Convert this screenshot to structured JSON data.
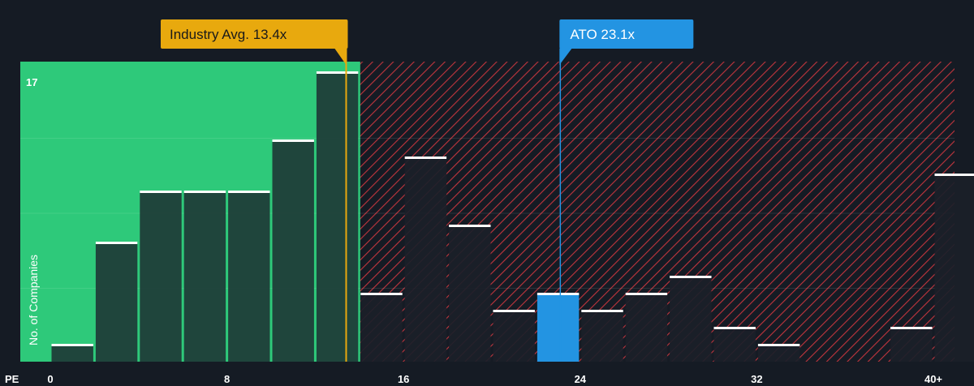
{
  "chart_data": {
    "type": "bar",
    "xlabel": "PE",
    "ylabel": "No. of Companies",
    "x_ticks": [
      "0",
      "8",
      "16",
      "24",
      "32",
      "40+"
    ],
    "y_max_label": "17",
    "ylim": [
      0,
      17
    ],
    "bin_width": 2,
    "bins_left": [
      0,
      2,
      4,
      6,
      8,
      10,
      12,
      14,
      16,
      18,
      20,
      22,
      24,
      26,
      28,
      30,
      32,
      34,
      36,
      38,
      40
    ],
    "values": [
      1,
      7,
      10,
      10,
      10,
      13,
      17,
      4,
      12,
      8,
      3,
      4,
      3,
      4,
      5,
      2,
      1,
      0,
      0,
      2,
      11
    ],
    "highlight_index": 11,
    "industry_avg": {
      "label": "Industry Avg. 13.4x",
      "value": 13.4
    },
    "company": {
      "label": "ATO 23.1x",
      "value": 23.1
    },
    "colors": {
      "background": "#151b24",
      "under_avg_zone": "#2ec97a",
      "over_avg_hatch": "#c0353d",
      "bar_fill": "#1e3a36",
      "bar_fill_over": "#1b1f29",
      "bar_top": "#ffffff",
      "avg_marker": "#e8a90e",
      "company_marker": "#2394e2"
    }
  }
}
